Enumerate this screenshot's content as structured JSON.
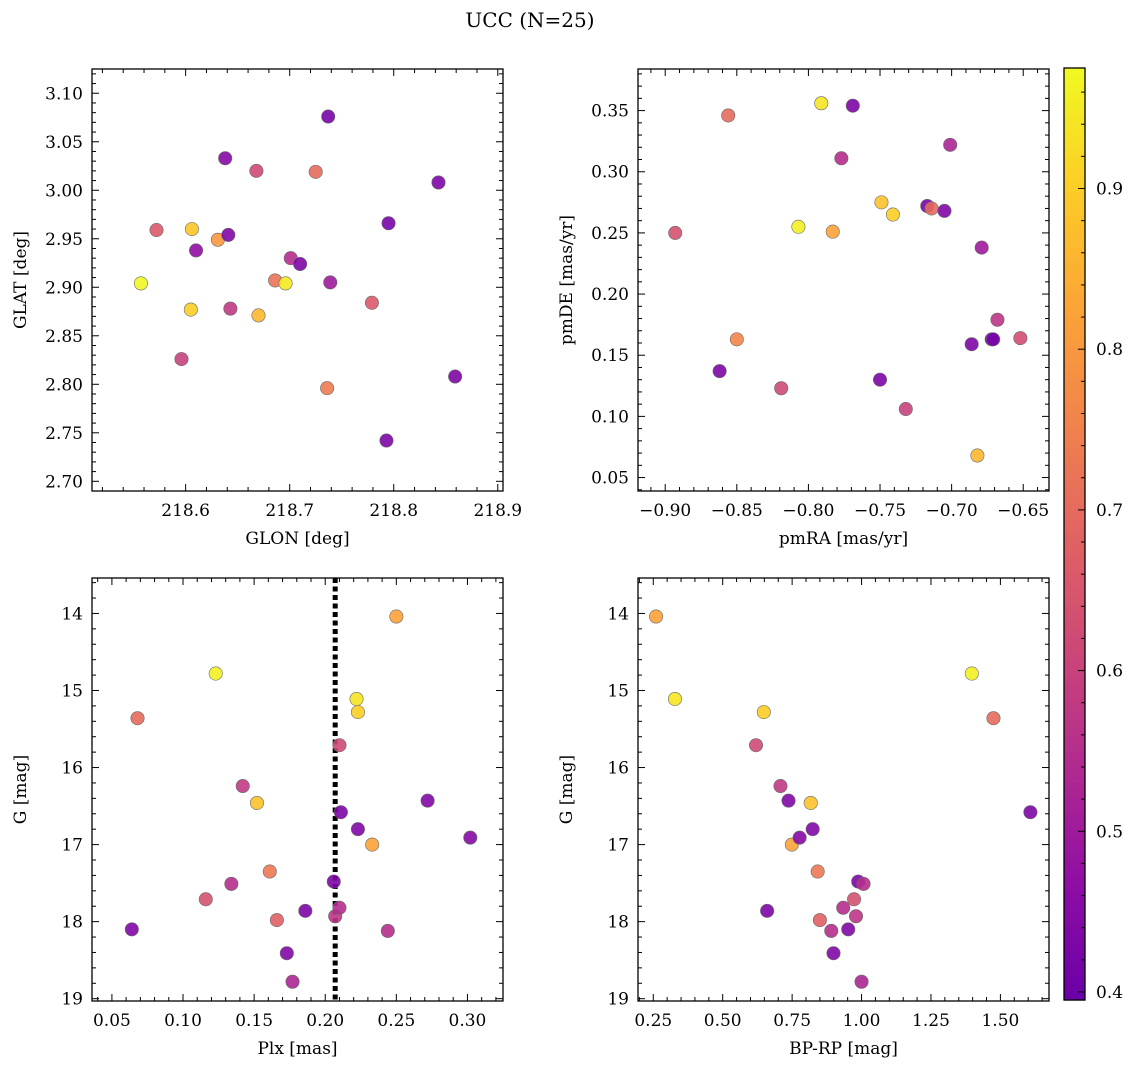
{
  "figure": {
    "title": "UCC (N=25)"
  },
  "colorbar": {
    "colormap": "plasma",
    "range": [
      0.395,
      0.975
    ],
    "ticks": [
      0.4,
      0.5,
      0.6,
      0.7,
      0.8,
      0.9
    ],
    "tick_labels": [
      "0.4",
      "0.5",
      "0.6",
      "0.7",
      "0.8",
      "0.9"
    ]
  },
  "chart_data": [
    {
      "type": "scatter",
      "xlabel": "GLON [deg]",
      "ylabel": "GLAT [deg]",
      "xlim": [
        218.51,
        218.905
      ],
      "ylim": [
        2.69,
        3.125
      ],
      "xticks": [
        218.6,
        218.7,
        218.8,
        218.9
      ],
      "xtick_labels": [
        "218.6",
        "218.7",
        "218.8",
        "218.9"
      ],
      "yticks": [
        2.7,
        2.75,
        2.8,
        2.85,
        2.9,
        2.95,
        3.0,
        3.05,
        3.1
      ],
      "ytick_labels": [
        "2.70",
        "2.75",
        "2.80",
        "2.85",
        "2.90",
        "2.95",
        "3.00",
        "3.05",
        "3.10"
      ],
      "points": [
        {
          "x": 218.557,
          "y": 2.904,
          "c": 0.97
        },
        {
          "x": 218.572,
          "y": 2.959,
          "c": 0.66
        },
        {
          "x": 218.596,
          "y": 2.826,
          "c": 0.6
        },
        {
          "x": 218.606,
          "y": 2.96,
          "c": 0.89
        },
        {
          "x": 218.605,
          "y": 2.877,
          "c": 0.9
        },
        {
          "x": 218.61,
          "y": 2.938,
          "c": 0.47
        },
        {
          "x": 218.631,
          "y": 2.949,
          "c": 0.8
        },
        {
          "x": 218.638,
          "y": 3.033,
          "c": 0.45
        },
        {
          "x": 218.641,
          "y": 2.954,
          "c": 0.44
        },
        {
          "x": 218.643,
          "y": 2.878,
          "c": 0.58
        },
        {
          "x": 218.668,
          "y": 3.02,
          "c": 0.62
        },
        {
          "x": 218.67,
          "y": 2.871,
          "c": 0.86
        },
        {
          "x": 218.686,
          "y": 2.907,
          "c": 0.72
        },
        {
          "x": 218.696,
          "y": 2.904,
          "c": 0.95
        },
        {
          "x": 218.701,
          "y": 2.93,
          "c": 0.55
        },
        {
          "x": 218.71,
          "y": 2.924,
          "c": 0.43
        },
        {
          "x": 218.725,
          "y": 3.019,
          "c": 0.7
        },
        {
          "x": 218.737,
          "y": 3.076,
          "c": 0.42
        },
        {
          "x": 218.736,
          "y": 2.796,
          "c": 0.74
        },
        {
          "x": 218.739,
          "y": 2.905,
          "c": 0.5
        },
        {
          "x": 218.779,
          "y": 2.884,
          "c": 0.66
        },
        {
          "x": 218.795,
          "y": 2.966,
          "c": 0.42
        },
        {
          "x": 218.793,
          "y": 2.742,
          "c": 0.43
        },
        {
          "x": 218.843,
          "y": 3.008,
          "c": 0.43
        },
        {
          "x": 218.859,
          "y": 2.808,
          "c": 0.43
        }
      ]
    },
    {
      "type": "scatter",
      "xlabel": "pmRA [mas/yr]",
      "ylabel": "pmDE [mas/yr]",
      "xlim": [
        -0.919,
        -0.632
      ],
      "ylim": [
        0.039,
        0.384
      ],
      "xticks": [
        -0.9,
        -0.85,
        -0.8,
        -0.75,
        -0.7,
        -0.65
      ],
      "xtick_labels": [
        "−0.90",
        "−0.85",
        "−0.80",
        "−0.75",
        "−0.70",
        "−0.65"
      ],
      "yticks": [
        0.05,
        0.1,
        0.15,
        0.2,
        0.25,
        0.3,
        0.35
      ],
      "ytick_labels": [
        "0.05",
        "0.10",
        "0.15",
        "0.20",
        "0.25",
        "0.30",
        "0.35"
      ],
      "points": [
        {
          "x": -0.893,
          "y": 0.25,
          "c": 0.64
        },
        {
          "x": -0.862,
          "y": 0.137,
          "c": 0.43
        },
        {
          "x": -0.856,
          "y": 0.346,
          "c": 0.7
        },
        {
          "x": -0.85,
          "y": 0.163,
          "c": 0.76
        },
        {
          "x": -0.819,
          "y": 0.123,
          "c": 0.62
        },
        {
          "x": -0.807,
          "y": 0.255,
          "c": 0.96
        },
        {
          "x": -0.791,
          "y": 0.356,
          "c": 0.94
        },
        {
          "x": -0.783,
          "y": 0.251,
          "c": 0.82
        },
        {
          "x": -0.777,
          "y": 0.311,
          "c": 0.55
        },
        {
          "x": -0.769,
          "y": 0.354,
          "c": 0.43
        },
        {
          "x": -0.75,
          "y": 0.13,
          "c": 0.43
        },
        {
          "x": -0.749,
          "y": 0.275,
          "c": 0.88
        },
        {
          "x": -0.741,
          "y": 0.265,
          "c": 0.9
        },
        {
          "x": -0.732,
          "y": 0.106,
          "c": 0.6
        },
        {
          "x": -0.717,
          "y": 0.272,
          "c": 0.42
        },
        {
          "x": -0.714,
          "y": 0.27,
          "c": 0.7
        },
        {
          "x": -0.705,
          "y": 0.268,
          "c": 0.44
        },
        {
          "x": -0.701,
          "y": 0.322,
          "c": 0.53
        },
        {
          "x": -0.686,
          "y": 0.159,
          "c": 0.43
        },
        {
          "x": -0.682,
          "y": 0.068,
          "c": 0.86
        },
        {
          "x": -0.679,
          "y": 0.238,
          "c": 0.5
        },
        {
          "x": -0.672,
          "y": 0.163,
          "c": 0.4
        },
        {
          "x": -0.671,
          "y": 0.163,
          "c": 0.42
        },
        {
          "x": -0.668,
          "y": 0.179,
          "c": 0.57
        },
        {
          "x": -0.652,
          "y": 0.164,
          "c": 0.63
        }
      ]
    },
    {
      "type": "scatter",
      "xlabel": "Plx [mas]",
      "ylabel": "G [mag]",
      "xlim": [
        0.036,
        0.325
      ],
      "ylim": [
        19.03,
        13.54
      ],
      "y_inverted": true,
      "vline_x": 0.207,
      "xticks": [
        0.05,
        0.1,
        0.15,
        0.2,
        0.25,
        0.3
      ],
      "xtick_labels": [
        "0.05",
        "0.10",
        "0.15",
        "0.20",
        "0.25",
        "0.30"
      ],
      "yticks": [
        14,
        15,
        16,
        17,
        18,
        19
      ],
      "ytick_labels": [
        "14",
        "15",
        "16",
        "17",
        "18",
        "19"
      ],
      "points": [
        {
          "x": 0.064,
          "y": 18.1,
          "c": 0.44
        },
        {
          "x": 0.068,
          "y": 15.36,
          "c": 0.7
        },
        {
          "x": 0.116,
          "y": 17.71,
          "c": 0.64
        },
        {
          "x": 0.123,
          "y": 14.78,
          "c": 0.96
        },
        {
          "x": 0.134,
          "y": 17.51,
          "c": 0.55
        },
        {
          "x": 0.142,
          "y": 16.24,
          "c": 0.58
        },
        {
          "x": 0.152,
          "y": 16.46,
          "c": 0.88
        },
        {
          "x": 0.161,
          "y": 17.35,
          "c": 0.73
        },
        {
          "x": 0.166,
          "y": 17.98,
          "c": 0.68
        },
        {
          "x": 0.173,
          "y": 18.41,
          "c": 0.44
        },
        {
          "x": 0.177,
          "y": 18.78,
          "c": 0.53
        },
        {
          "x": 0.186,
          "y": 17.86,
          "c": 0.43
        },
        {
          "x": 0.206,
          "y": 17.48,
          "c": 0.43
        },
        {
          "x": 0.207,
          "y": 17.93,
          "c": 0.57
        },
        {
          "x": 0.21,
          "y": 15.71,
          "c": 0.62
        },
        {
          "x": 0.21,
          "y": 17.82,
          "c": 0.55
        },
        {
          "x": 0.211,
          "y": 16.58,
          "c": 0.43
        },
        {
          "x": 0.222,
          "y": 15.11,
          "c": 0.94
        },
        {
          "x": 0.223,
          "y": 15.28,
          "c": 0.9
        },
        {
          "x": 0.223,
          "y": 16.8,
          "c": 0.44
        },
        {
          "x": 0.233,
          "y": 17.0,
          "c": 0.82
        },
        {
          "x": 0.244,
          "y": 18.12,
          "c": 0.55
        },
        {
          "x": 0.25,
          "y": 14.04,
          "c": 0.82
        },
        {
          "x": 0.272,
          "y": 16.43,
          "c": 0.44
        },
        {
          "x": 0.302,
          "y": 16.91,
          "c": 0.45
        }
      ]
    },
    {
      "type": "scatter",
      "xlabel": "BP-RP [mag]",
      "ylabel": "G [mag]",
      "xlim": [
        0.195,
        1.675
      ],
      "ylim": [
        19.03,
        13.54
      ],
      "y_inverted": true,
      "xticks": [
        0.25,
        0.5,
        0.75,
        1.0,
        1.25,
        1.5
      ],
      "xtick_labels": [
        "0.25",
        "0.50",
        "0.75",
        "1.00",
        "1.25",
        "1.50"
      ],
      "yticks": [
        14,
        15,
        16,
        17,
        18,
        19
      ],
      "ytick_labels": [
        "14",
        "15",
        "16",
        "17",
        "18",
        "19"
      ],
      "points": [
        {
          "x": 0.26,
          "y": 14.04,
          "c": 0.82
        },
        {
          "x": 0.328,
          "y": 15.11,
          "c": 0.94
        },
        {
          "x": 0.62,
          "y": 15.71,
          "c": 0.62
        },
        {
          "x": 0.648,
          "y": 15.28,
          "c": 0.9
        },
        {
          "x": 0.66,
          "y": 17.86,
          "c": 0.43
        },
        {
          "x": 0.708,
          "y": 16.24,
          "c": 0.58
        },
        {
          "x": 0.737,
          "y": 16.43,
          "c": 0.44
        },
        {
          "x": 0.749,
          "y": 17.0,
          "c": 0.82
        },
        {
          "x": 0.777,
          "y": 16.91,
          "c": 0.45
        },
        {
          "x": 0.817,
          "y": 16.46,
          "c": 0.88
        },
        {
          "x": 0.824,
          "y": 16.8,
          "c": 0.44
        },
        {
          "x": 0.842,
          "y": 17.35,
          "c": 0.73
        },
        {
          "x": 0.85,
          "y": 17.98,
          "c": 0.68
        },
        {
          "x": 0.891,
          "y": 18.12,
          "c": 0.55
        },
        {
          "x": 0.899,
          "y": 18.41,
          "c": 0.44
        },
        {
          "x": 0.934,
          "y": 17.82,
          "c": 0.55
        },
        {
          "x": 0.952,
          "y": 18.1,
          "c": 0.44
        },
        {
          "x": 0.973,
          "y": 17.71,
          "c": 0.64
        },
        {
          "x": 0.98,
          "y": 17.93,
          "c": 0.57
        },
        {
          "x": 0.988,
          "y": 17.48,
          "c": 0.43
        },
        {
          "x": 1.0,
          "y": 18.78,
          "c": 0.53
        },
        {
          "x": 1.007,
          "y": 17.51,
          "c": 0.55
        },
        {
          "x": 1.397,
          "y": 14.78,
          "c": 0.96
        },
        {
          "x": 1.475,
          "y": 15.36,
          "c": 0.7
        },
        {
          "x": 1.608,
          "y": 16.58,
          "c": 0.43
        }
      ]
    }
  ]
}
